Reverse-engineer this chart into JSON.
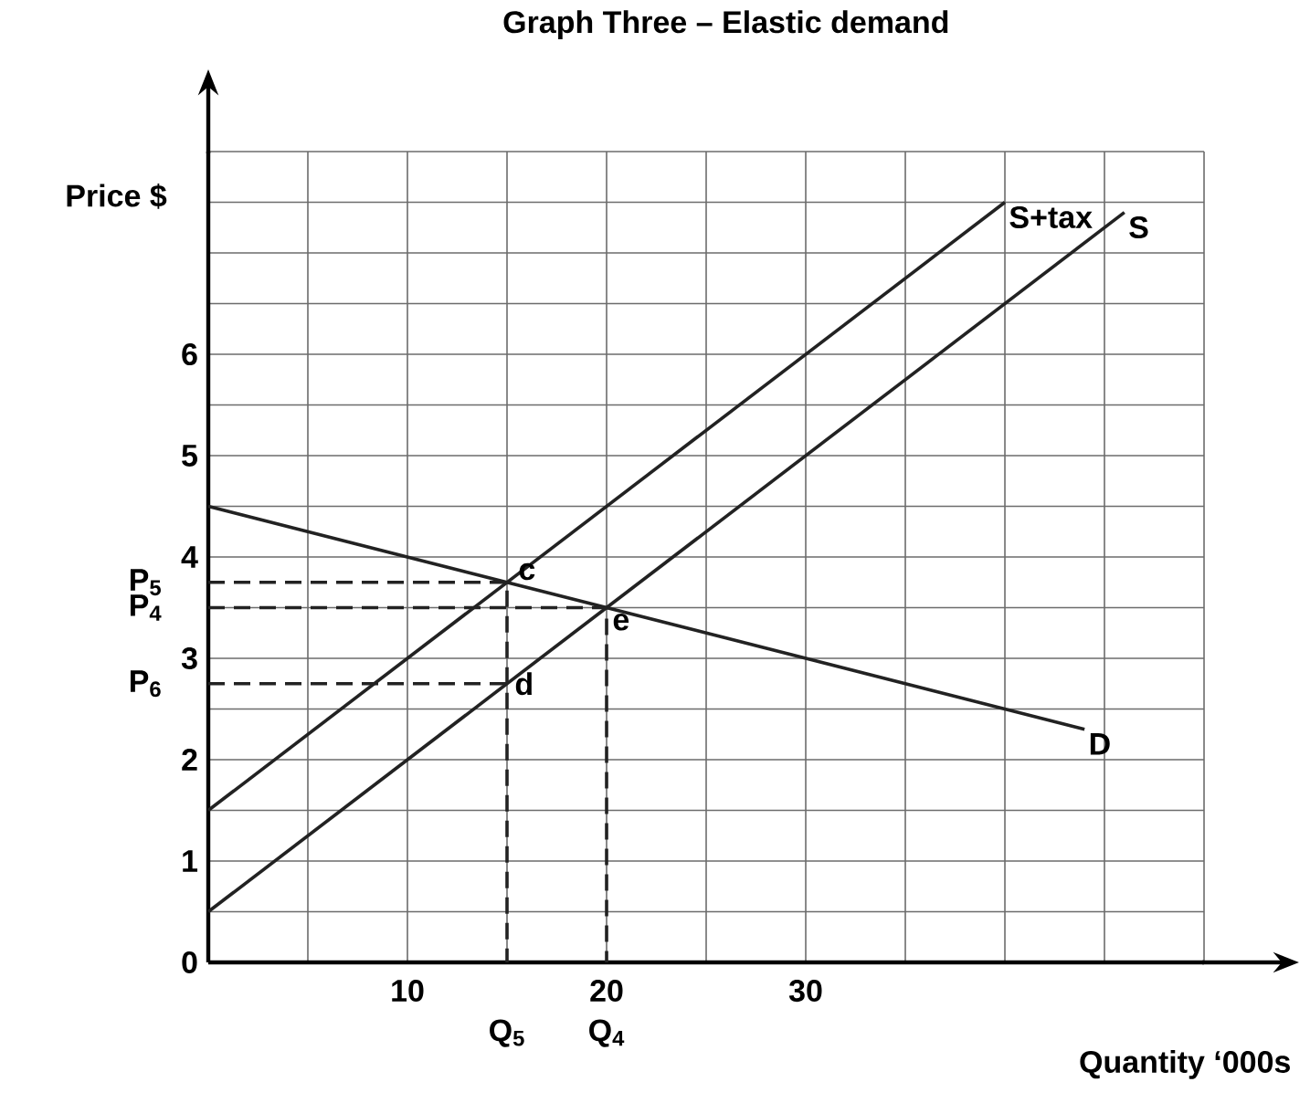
{
  "chart_data": {
    "type": "line",
    "title": "Graph Three – Elastic demand",
    "xlabel": "Quantity ‘000s",
    "ylabel": "Price $",
    "xlim": [
      0,
      50
    ],
    "ylim": [
      0,
      8
    ],
    "xticks": [
      {
        "value": 5,
        "label": null
      },
      10,
      {
        "value": 15,
        "label": null
      },
      20,
      {
        "value": 25,
        "label": null
      },
      30,
      {
        "value": 35,
        "label": null
      },
      {
        "value": 40,
        "label": null
      },
      {
        "value": 45,
        "label": null
      },
      {
        "value": 50,
        "label": null
      }
    ],
    "yticks": [
      0,
      {
        "value": 0.5,
        "label": null
      },
      1,
      {
        "value": 1.5,
        "label": null
      },
      2,
      {
        "value": 2.5,
        "label": null
      },
      3,
      {
        "value": 3.5,
        "label": null
      },
      4,
      {
        "value": 4.5,
        "label": null
      },
      5,
      {
        "value": 5.5,
        "label": null
      },
      6,
      {
        "value": 6.5,
        "label": null
      },
      {
        "value": 7,
        "label": null
      },
      {
        "value": 7.5,
        "label": null
      },
      {
        "value": 8,
        "label": null
      }
    ],
    "grid": true,
    "legend": false,
    "marker": "none",
    "series": [
      {
        "name": "S+tax",
        "color": "#222222",
        "x": [
          0,
          40
        ],
        "values": [
          1.5,
          7.5
        ]
      },
      {
        "name": "S",
        "color": "#222222",
        "x": [
          0,
          46
        ],
        "values": [
          0.5,
          7.4
        ]
      },
      {
        "name": "D",
        "color": "#222222",
        "x": [
          0,
          44
        ],
        "values": [
          4.5,
          2.3
        ]
      },
      {
        "color": "#222222",
        "line_style": "dashed",
        "x": [
          0,
          15,
          15
        ],
        "values": [
          3.75,
          3.75,
          0
        ]
      },
      {
        "color": "#222222",
        "line_style": "dashed",
        "x": [
          0,
          20,
          20
        ],
        "values": [
          3.5,
          3.5,
          0
        ]
      },
      {
        "color": "#222222",
        "line_style": "dashed",
        "x": [
          0,
          15
        ],
        "values": [
          2.75,
          2.75
        ]
      }
    ],
    "annotations": [
      {
        "text": "c",
        "x": 15,
        "y": 3.75
      },
      {
        "text": "e",
        "x": 20,
        "y": 3.5
      },
      {
        "text": "d",
        "x": 15,
        "y": 2.75
      },
      {
        "text": "P$_{5}$",
        "x": 0,
        "y": 3.75
      },
      {
        "text": "P$_{4}$",
        "x": 0,
        "y": 3.5
      },
      {
        "text": "P$_{6}$",
        "x": 0,
        "y": 2.75
      },
      {
        "text": "Q$_{5}$",
        "x": 15,
        "y": 0
      },
      {
        "text": "Q$_{4}$",
        "x": 20,
        "y": 0
      }
    ]
  }
}
